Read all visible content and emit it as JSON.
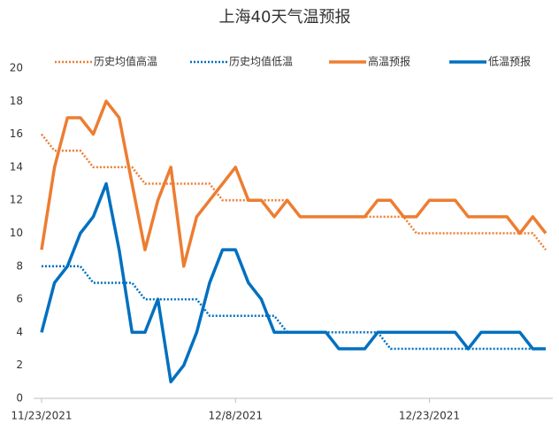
{
  "chart_data": {
    "type": "line",
    "title": "上海40天气温预报",
    "categories": [
      "11/23/2021",
      null,
      null,
      null,
      null,
      null,
      null,
      null,
      null,
      null,
      null,
      null,
      null,
      null,
      null,
      "12/8/2021",
      null,
      null,
      null,
      null,
      null,
      null,
      null,
      null,
      null,
      null,
      null,
      null,
      null,
      null,
      "12/23/2021",
      null,
      null,
      null,
      null,
      null,
      null,
      null,
      null,
      null
    ],
    "series": [
      {
        "name": "历史均值高温",
        "color": "#ED7D31",
        "line_style": "dotted",
        "values": [
          16,
          15,
          15,
          15,
          14,
          14,
          14,
          14,
          13,
          13,
          13,
          13,
          13,
          13,
          12,
          12,
          12,
          12,
          12,
          12,
          11,
          11,
          11,
          11,
          11,
          11,
          11,
          11,
          11,
          10,
          10,
          10,
          10,
          10,
          10,
          10,
          10,
          10,
          10,
          9
        ]
      },
      {
        "name": "历史均值低温",
        "color": "#0070C0",
        "line_style": "dotted",
        "values": [
          8,
          8,
          8,
          8,
          7,
          7,
          7,
          7,
          6,
          6,
          6,
          6,
          6,
          5,
          5,
          5,
          5,
          5,
          5,
          4,
          4,
          4,
          4,
          4,
          4,
          4,
          4,
          3,
          3,
          3,
          3,
          3,
          3,
          3,
          3,
          3,
          3,
          3,
          3,
          3
        ]
      },
      {
        "name": "高温预报",
        "color": "#ED7D31",
        "line_style": "solid",
        "values": [
          9,
          14,
          17,
          17,
          16,
          18,
          17,
          13,
          9,
          12,
          14,
          8,
          11,
          12,
          13,
          14,
          12,
          12,
          11,
          12,
          11,
          11,
          11,
          11,
          11,
          11,
          12,
          12,
          11,
          11,
          12,
          12,
          12,
          11,
          11,
          11,
          11,
          10,
          11,
          10
        ]
      },
      {
        "name": "低温预报",
        "color": "#0070C0",
        "line_style": "solid",
        "values": [
          4,
          7,
          8,
          10,
          11,
          13,
          9,
          4,
          4,
          6,
          1,
          2,
          4,
          7,
          9,
          9,
          7,
          6,
          4,
          4,
          4,
          4,
          4,
          3,
          3,
          3,
          4,
          4,
          4,
          4,
          4,
          4,
          4,
          3,
          4,
          4,
          4,
          4,
          3,
          3
        ]
      }
    ],
    "ylim": [
      0,
      20
    ],
    "yticks": [
      0,
      2,
      4,
      6,
      8,
      10,
      12,
      14,
      16,
      18,
      20
    ],
    "grid": false,
    "legend": "top"
  }
}
